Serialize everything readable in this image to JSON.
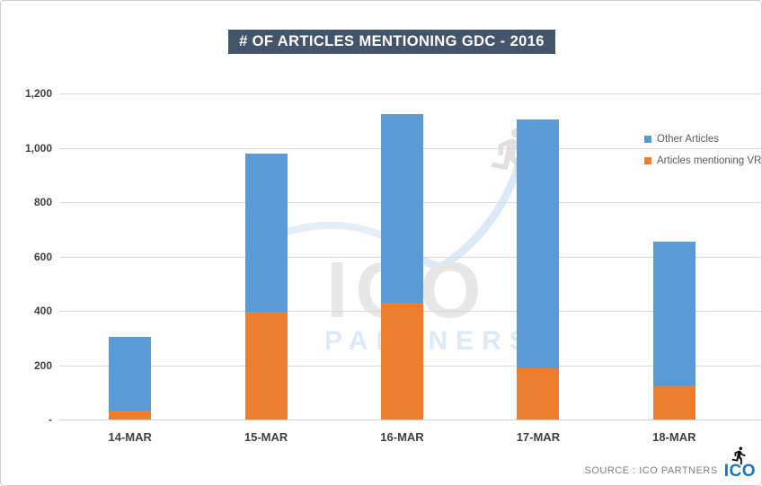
{
  "title": "# OF ARTICLES MENTIONING GDC - 2016",
  "watermark": {
    "line1": "ICO",
    "line2": "PARTNERS"
  },
  "legend": [
    {
      "label": "Other Articles",
      "color": "#5B9BD5"
    },
    {
      "label": "Articles mentioning VR",
      "color": "#ED7D31"
    }
  ],
  "footer": {
    "source_label": "SOURCE : ICO PARTNERS",
    "logo_text": "ICO",
    "logo_color": "#1b75bc",
    "runner_icon": "runner-icon"
  },
  "colors": {
    "blue_series": "#5B9BD5",
    "orange_series": "#ED7D31",
    "title_background": "#44546A",
    "gridline": "#d9d9d9",
    "axis_text": "#404040",
    "legend_text": "#595959",
    "watermark_gray": "#e7e7e7",
    "watermark_blue": "#ddeaf7"
  },
  "chart_data": {
    "type": "bar",
    "stacked": true,
    "title": "# OF ARTICLES MENTIONING GDC - 2016",
    "categories": [
      "14-MAR",
      "15-MAR",
      "16-MAR",
      "17-MAR",
      "18-MAR"
    ],
    "series": [
      {
        "name": "Articles mentioning VR",
        "color": "#ED7D31",
        "values": [
          33,
          398,
          430,
          190,
          125
        ]
      },
      {
        "name": "Other Articles",
        "color": "#5B9BD5",
        "values": [
          272,
          580,
          695,
          915,
          528
        ]
      }
    ],
    "stack_totals": [
      305,
      978,
      1125,
      1105,
      653
    ],
    "xlabel": "",
    "ylabel": "",
    "ylim": [
      0,
      1200
    ],
    "ytick_interval": 200,
    "ytick_labels": [
      "1,200",
      "1,000",
      "800",
      "600",
      "400",
      "200",
      "-"
    ],
    "grid": true,
    "legend_position": "right"
  }
}
